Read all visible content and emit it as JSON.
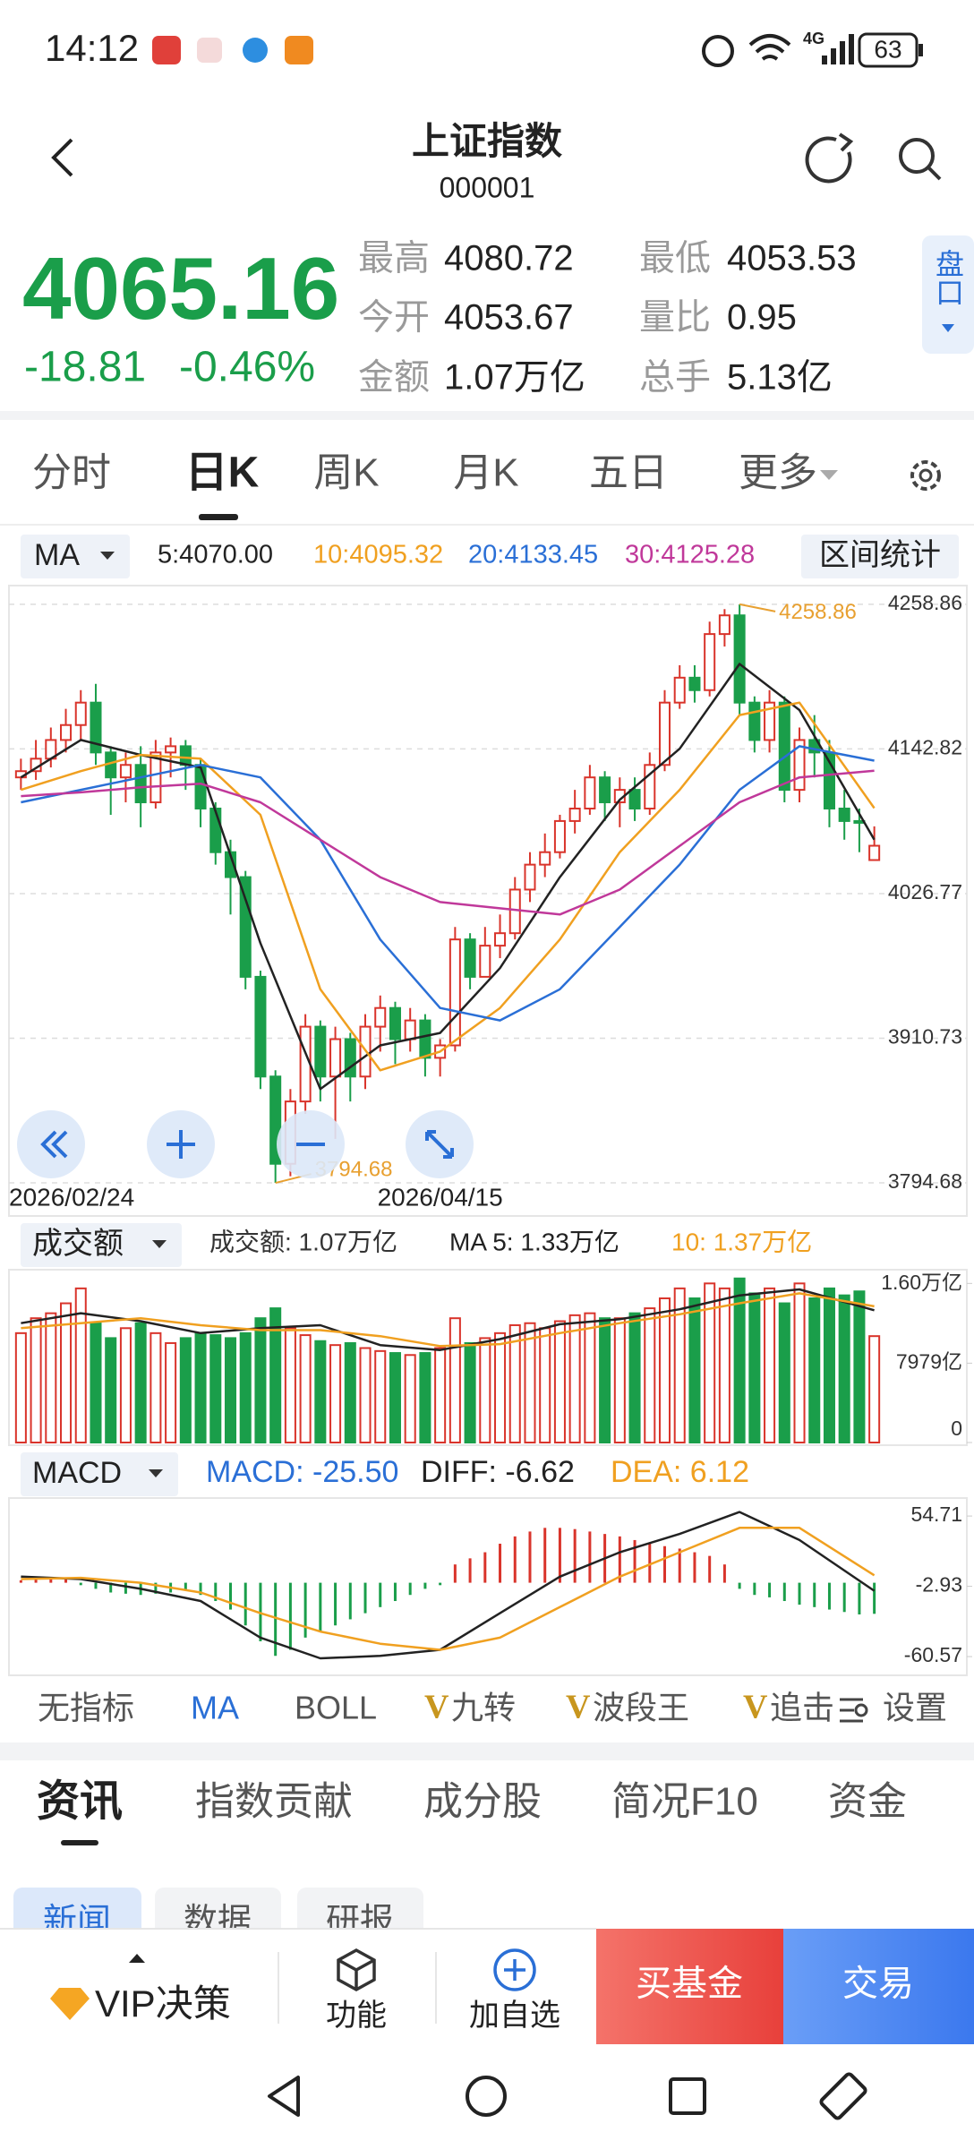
{
  "status_bar": {
    "time": "14:12",
    "network": "4G",
    "battery": "63"
  },
  "header": {
    "title": "上证指数",
    "code": "000001"
  },
  "quote": {
    "price": "4065.16",
    "change": "-18.81",
    "change_pct": "-0.46%",
    "stats": [
      {
        "label": "最高",
        "value": "4080.72"
      },
      {
        "label": "最低",
        "value": "4053.53"
      },
      {
        "label": "今开",
        "value": "4053.67"
      },
      {
        "label": "量比",
        "value": "0.95"
      },
      {
        "label": "金额",
        "value": "1.07万亿"
      },
      {
        "label": "总手",
        "value": "5.13亿"
      }
    ],
    "side_button": "盘口"
  },
  "period_tabs": [
    "分时",
    "日K",
    "周K",
    "月K",
    "五日",
    "更多"
  ],
  "ma_selector": "MA",
  "range_stats": "区间统计",
  "volume_selector": "成交额",
  "macd_selector": "MACD",
  "indicator_tabs": [
    {
      "label": "无指标"
    },
    {
      "label": "MA"
    },
    {
      "label": "BOLL"
    },
    {
      "prefix": "V",
      "label": "九转"
    },
    {
      "prefix": "V",
      "label": "波段王"
    },
    {
      "prefix": "V",
      "label": "追击"
    },
    {
      "label": "设置"
    }
  ],
  "info_tabs": [
    "资讯",
    "指数贡献",
    "成分股",
    "简况F10",
    "资金"
  ],
  "sub_tabs": [
    "新闻",
    "数据",
    "研报"
  ],
  "bottom_bar": {
    "vip": "VIP决策",
    "function": "功能",
    "watchlist": "加自选",
    "buy_fund": "买基金",
    "trade": "交易"
  },
  "chart_data": [
    {
      "type": "candlestick",
      "categories": [
        "2026/02/24",
        null,
        null,
        null,
        null,
        null,
        null,
        null,
        null,
        null,
        null,
        null,
        null,
        null,
        null,
        null,
        null,
        null,
        null,
        null,
        null,
        null,
        null,
        null,
        null,
        null,
        null,
        null,
        "2026/04/15",
        null,
        null,
        null,
        null,
        null,
        null,
        null,
        null,
        null,
        null,
        null,
        null,
        null,
        null,
        null,
        null,
        null,
        null,
        null,
        null,
        null,
        null,
        null,
        null,
        null,
        null,
        null,
        null,
        null
      ],
      "open": [
        4120,
        4125,
        4135,
        4150,
        4162,
        4180,
        4140,
        4120,
        4130,
        4100,
        4140,
        4145,
        4130,
        4095,
        4060,
        4040,
        3960,
        3880,
        3810,
        3860,
        3920,
        3880,
        3910,
        3880,
        3920,
        3935,
        3910,
        3925,
        3895,
        3905,
        3990,
        3960,
        3985,
        3995,
        4030,
        4050,
        4060,
        4085,
        4095,
        4120,
        4100,
        4110,
        4095,
        4130,
        4180,
        4200,
        4190,
        4235,
        4250,
        4180,
        4150,
        4180,
        4110,
        4150,
        4140,
        4095,
        4085,
        4053.67
      ],
      "close": [
        4125,
        4135,
        4150,
        4162,
        4180,
        4140,
        4120,
        4130,
        4100,
        4140,
        4145,
        4130,
        4095,
        4060,
        4040,
        3960,
        3880,
        3810,
        3860,
        3920,
        3880,
        3910,
        3880,
        3920,
        3935,
        3910,
        3925,
        3895,
        3905,
        3990,
        3960,
        3985,
        3995,
        4030,
        4050,
        4060,
        4085,
        4095,
        4120,
        4100,
        4110,
        4095,
        4130,
        4180,
        4200,
        4190,
        4235,
        4250,
        4180,
        4150,
        4180,
        4110,
        4150,
        4140,
        4095,
        4085,
        4083.97,
        4065.16
      ],
      "high": [
        4135,
        4150,
        4160,
        4175,
        4190,
        4195,
        4145,
        4140,
        4145,
        4150,
        4152,
        4150,
        4135,
        4100,
        4070,
        4045,
        3965,
        3885,
        3870,
        3930,
        3925,
        3920,
        3915,
        3930,
        3945,
        3940,
        3935,
        3930,
        3910,
        4000,
        3995,
        4000,
        4010,
        4040,
        4060,
        4075,
        4090,
        4110,
        4130,
        4125,
        4120,
        4120,
        4140,
        4190,
        4210,
        4210,
        4245,
        4255,
        4258.86,
        4185,
        4190,
        4185,
        4160,
        4170,
        4150,
        4110,
        4095,
        4080.72
      ],
      "low": [
        4110,
        4118,
        4128,
        4140,
        4150,
        4130,
        4090,
        4100,
        4080,
        4095,
        4120,
        4110,
        4080,
        4050,
        4010,
        3950,
        3870,
        3794.68,
        3800,
        3850,
        3860,
        3830,
        3860,
        3870,
        3900,
        3890,
        3900,
        3880,
        3880,
        3900,
        3950,
        3960,
        3975,
        3990,
        4020,
        4040,
        4055,
        4075,
        4090,
        4085,
        4080,
        4085,
        4090,
        4125,
        4175,
        4180,
        4185,
        4225,
        4170,
        4140,
        4140,
        4100,
        4100,
        4120,
        4080,
        4070,
        4060,
        4053.53
      ],
      "up_color": "#d9342b",
      "down_color": "#1a9e4a",
      "mark_extremes": true,
      "extreme_color": "#e8a030",
      "ylim": [
        3771,
        4271
      ],
      "yticks": [
        4258.86,
        4142.82,
        4026.77,
        3910.73,
        3794.68
      ],
      "grid": true,
      "series": [
        {
          "name": "5:4070.00",
          "color": "#222222",
          "x": [
            0,
            4,
            8,
            12,
            16,
            20,
            24,
            28,
            32,
            36,
            40,
            44,
            48,
            52,
            57
          ],
          "values": [
            4120,
            4150,
            4138,
            4128,
            3987,
            3870,
            3905,
            3915,
            3967,
            4040,
            4102,
            4143,
            4211,
            4174,
            4070.0
          ]
        },
        {
          "name": "10:4095.32",
          "color": "#f0a020",
          "x": [
            0,
            4,
            8,
            12,
            16,
            20,
            24,
            28,
            32,
            36,
            40,
            44,
            48,
            52,
            57
          ],
          "values": [
            4110,
            4125,
            4138,
            4135,
            4090,
            3950,
            3885,
            3900,
            3935,
            3990,
            4060,
            4110,
            4170,
            4180,
            4095.32
          ]
        },
        {
          "name": "20:4133.45",
          "color": "#2a6fd6",
          "x": [
            0,
            4,
            8,
            12,
            16,
            20,
            24,
            28,
            32,
            36,
            40,
            44,
            48,
            52,
            57
          ],
          "values": [
            4100,
            4110,
            4120,
            4130,
            4120,
            4070,
            3990,
            3935,
            3925,
            3950,
            4000,
            4050,
            4110,
            4145,
            4133.45
          ]
        },
        {
          "name": "30:4125.28",
          "color": "#c0389a",
          "x": [
            0,
            4,
            8,
            12,
            16,
            20,
            24,
            28,
            32,
            36,
            40,
            44,
            48,
            52,
            57
          ],
          "values": [
            4105,
            4108,
            4112,
            4115,
            4100,
            4070,
            4040,
            4020,
            4015,
            4010,
            4030,
            4065,
            4100,
            4120,
            4125.28
          ]
        }
      ]
    },
    {
      "type": "bar",
      "up_color": "#d9342b",
      "down_color": "#1a9e4a",
      "ylim": [
        0,
        17200
      ],
      "yticks": [
        {
          "value": 16000,
          "label": "1.60万亿"
        },
        {
          "value": 7979,
          "label": "7979亿"
        },
        0
      ],
      "series": [
        {
          "name": "成交额: 1.07万亿",
          "color": "#333333",
          "values": [
            11000,
            12500,
            13000,
            14000,
            15500,
            12000,
            10500,
            11500,
            12000,
            11000,
            10000,
            10500,
            11000,
            10800,
            10500,
            11000,
            12500,
            13500,
            11500,
            10800,
            10200,
            9800,
            10000,
            9500,
            9200,
            9000,
            8800,
            9000,
            9500,
            12500,
            10000,
            10500,
            11000,
            11800,
            12000,
            11500,
            12200,
            12800,
            13000,
            12500,
            12500,
            13000,
            13500,
            14500,
            15500,
            14500,
            16000,
            15500,
            16500,
            15000,
            15500,
            14000,
            16000,
            14500,
            15500,
            14800,
            15200,
            10700
          ]
        },
        {
          "name": "MA 5: 1.33万亿",
          "color": "#222222",
          "x": [
            0,
            4,
            8,
            12,
            16,
            20,
            24,
            28,
            32,
            36,
            40,
            44,
            48,
            52,
            57
          ],
          "values": [
            12000,
            13000,
            12200,
            11000,
            11500,
            11800,
            9800,
            9300,
            10400,
            11900,
            12400,
            13400,
            14800,
            15400,
            13300
          ]
        },
        {
          "name": "10: 1.37万亿",
          "color": "#f0a020",
          "x": [
            0,
            4,
            8,
            12,
            16,
            20,
            24,
            28,
            32,
            36,
            40,
            44,
            48,
            52,
            57
          ],
          "values": [
            11500,
            12000,
            12500,
            11800,
            11300,
            11300,
            10700,
            9700,
            9900,
            11000,
            12000,
            12900,
            14000,
            15000,
            13700
          ]
        }
      ]
    },
    {
      "type": "macd",
      "up_color": "#d9342b",
      "down_color": "#1a9e4a",
      "ylim": [
        -73,
        68
      ],
      "yticks": [
        54.71,
        -2.93,
        -60.57
      ],
      "series": [
        {
          "name": "MACD: -25.50",
          "color": "#2a6fd6",
          "values": [
            2,
            3,
            4,
            3,
            -2,
            -5,
            -8,
            -9,
            -10,
            -9,
            -8,
            -6,
            -10,
            -15,
            -22,
            -35,
            -48,
            -60,
            -55,
            -45,
            -40,
            -35,
            -30,
            -25,
            -20,
            -15,
            -10,
            -5,
            -2,
            15,
            20,
            25,
            32,
            38,
            42,
            45,
            45,
            44,
            42,
            40,
            38,
            35,
            33,
            30,
            28,
            25,
            22,
            15,
            -5,
            -10,
            -12,
            -15,
            -18,
            -20,
            -22,
            -24,
            -26,
            -25.5
          ]
        },
        {
          "name": "DIFF: -6.62",
          "color": "#222222",
          "x": [
            0,
            4,
            8,
            12,
            16,
            20,
            24,
            28,
            32,
            36,
            40,
            44,
            48,
            52,
            57
          ],
          "values": [
            5,
            3,
            -5,
            -15,
            -45,
            -62,
            -60,
            -55,
            -25,
            5,
            25,
            40,
            58,
            35,
            -6.62
          ]
        },
        {
          "name": "DEA: 6.12",
          "color": "#f0a020",
          "x": [
            0,
            4,
            8,
            12,
            16,
            20,
            24,
            28,
            32,
            36,
            40,
            44,
            48,
            52,
            57
          ],
          "values": [
            3,
            4,
            0,
            -8,
            -25,
            -40,
            -50,
            -55,
            -45,
            -20,
            5,
            25,
            45,
            45,
            6.12
          ]
        }
      ]
    }
  ]
}
